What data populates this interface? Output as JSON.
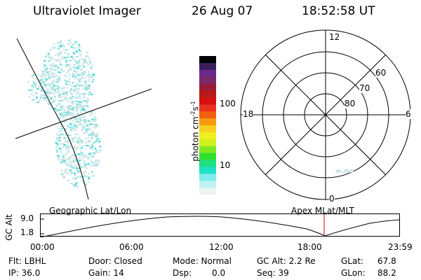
{
  "header": {
    "title": "Ultraviolet Imager",
    "date": "26 Aug 07",
    "time": "18:52:58 UT"
  },
  "colorbar": {
    "label": "photon cm",
    "label_exp1": "-2",
    "label_mid": "s",
    "label_exp2": "-1",
    "ticks": [
      "100",
      "10"
    ],
    "colors": [
      "#000000",
      "#3a1f5a",
      "#6b2a8a",
      "#7a2a6a",
      "#9a1a3a",
      "#b81a1a",
      "#d81010",
      "#e83020",
      "#f06010",
      "#f89a10",
      "#f8d020",
      "#f0f020",
      "#d0f020",
      "#80e820",
      "#30e030",
      "#20e080",
      "#20e0c8",
      "#80ecec",
      "#c0f0f0",
      "#e8f4f4"
    ]
  },
  "polar": {
    "labels": {
      "top": "12",
      "bottom": "0",
      "left": "18",
      "right": "6",
      "lat60": "60",
      "lat70": "70",
      "lat80": "80"
    }
  },
  "timeline": {
    "left_title": "Geographic Lat/Lon",
    "right_title": "Apex  MLat/MLT",
    "ylabel": "GC Alt",
    "y_ticks": [
      "9.0",
      "1.8"
    ],
    "x_ticks": [
      "00:00",
      "06:00",
      "12:00",
      "18:00",
      "23:59"
    ],
    "marker_color": "#cc0000"
  },
  "info": {
    "flt": "Flt: LBHL",
    "ip": "IP: 36.0",
    "door": "Door: Closed",
    "gain": "Gain: 14",
    "mode": "Mode: Normal",
    "dsp_label": "Dsp:",
    "dsp_value": "0.0",
    "gcalt": "GC Alt: 2.2 Re",
    "seq": "Seq: 39",
    "glat_label": "GLat:",
    "glat_value": "67.8",
    "glon_label": "GLon:",
    "glon_value": "88.2"
  },
  "colors": {
    "aurora_light": "#c8e6e4",
    "aurora_mid": "#7fdede",
    "aurora_bright": "#2fd6d6"
  }
}
